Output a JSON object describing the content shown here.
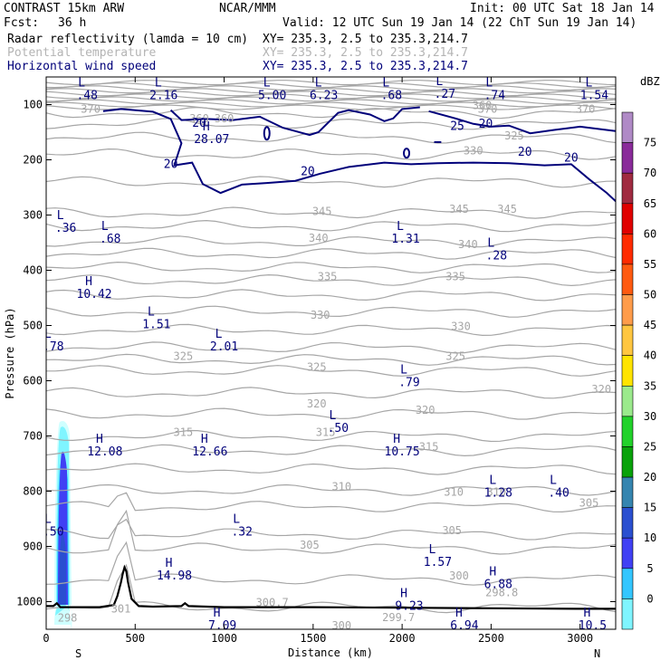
{
  "header": {
    "model": "CONTRAST 15km ARW",
    "org": "NCAR/MMM",
    "init": "Init: 00 UTC Sat 18 Jan 14",
    "fcst_label": "Fcst:",
    "fcst_value": "36 h",
    "valid": "Valid: 12 UTC Sun 19 Jan 14 (22 ChT Sun 19 Jan 14)",
    "fields": [
      {
        "name": "Radar reflectivity (lamda = 10 cm)",
        "xy": "XY= 235.3,  2.5 to 235.3,214.7",
        "color": "#000000"
      },
      {
        "name": "Potential temperature",
        "xy": "XY= 235.3,  2.5 to 235.3,214.7",
        "color": "#b4b4b4"
      },
      {
        "name": "Horizontal wind speed",
        "xy": "XY= 235.3,  2.5 to 235.3,214.7",
        "color": "#00007a"
      }
    ]
  },
  "chart_data": {
    "type": "cross-section",
    "xlabel": "Distance (km)",
    "ylabel": "Pressure (hPa)",
    "xlim": [
      0,
      3200
    ],
    "ylim": [
      1050,
      50
    ],
    "x_ticks": [
      0,
      500,
      1000,
      1500,
      2000,
      2500,
      3000
    ],
    "y_ticks": [
      100,
      200,
      300,
      400,
      500,
      600,
      700,
      800,
      900,
      1000
    ],
    "x_end_labels": {
      "left": "S",
      "right": "N"
    },
    "colorbar": {
      "title": "dBZ",
      "levels": [
        0,
        5,
        10,
        15,
        20,
        25,
        30,
        35,
        40,
        45,
        50,
        55,
        60,
        65,
        70,
        75
      ],
      "colors": [
        "#ffffff",
        "#cfffff",
        "#7ff5ff",
        "#33c6ff",
        "#4040f4",
        "#2a4fd0",
        "#3585b0",
        "#08a20a",
        "#22d22a",
        "#9bea8c",
        "#ffe400",
        "#ffc640",
        "#ff9c4a",
        "#ff5a10",
        "#ff2a00",
        "#e00000",
        "#c80060",
        "#a02a40",
        "#c03c80",
        "#8a2a9a",
        "#b08ac6"
      ]
    },
    "theta_labels": [
      {
        "text": "370",
        "x": 250,
        "p": 115
      },
      {
        "text": "360",
        "x": 860,
        "p": 132
      },
      {
        "text": "360",
        "x": 1000,
        "p": 132
      },
      {
        "text": "370",
        "x": 2480,
        "p": 115
      },
      {
        "text": "360",
        "x": 2450,
        "p": 108
      },
      {
        "text": "370",
        "x": 3030,
        "p": 115
      },
      {
        "text": "330",
        "x": 2400,
        "p": 190
      },
      {
        "text": "325",
        "x": 2630,
        "p": 163
      },
      {
        "text": "345",
        "x": 1550,
        "p": 300
      },
      {
        "text": "345",
        "x": 2320,
        "p": 296
      },
      {
        "text": "345",
        "x": 2590,
        "p": 296
      },
      {
        "text": "340",
        "x": 1530,
        "p": 348
      },
      {
        "text": "340",
        "x": 2370,
        "p": 360
      },
      {
        "text": "335",
        "x": 1580,
        "p": 418
      },
      {
        "text": "335",
        "x": 2300,
        "p": 418
      },
      {
        "text": "330",
        "x": 1540,
        "p": 488
      },
      {
        "text": "330",
        "x": 2330,
        "p": 508
      },
      {
        "text": "325",
        "x": 770,
        "p": 562
      },
      {
        "text": "325",
        "x": 1520,
        "p": 582
      },
      {
        "text": "325",
        "x": 2300,
        "p": 562
      },
      {
        "text": "320",
        "x": 1520,
        "p": 648
      },
      {
        "text": "320",
        "x": 2130,
        "p": 660
      },
      {
        "text": "320",
        "x": 3120,
        "p": 622
      },
      {
        "text": "315",
        "x": 770,
        "p": 700
      },
      {
        "text": "315",
        "x": 1570,
        "p": 700
      },
      {
        "text": "315",
        "x": 2150,
        "p": 726
      },
      {
        "text": "310",
        "x": 1660,
        "p": 798
      },
      {
        "text": "310",
        "x": 2290,
        "p": 808
      },
      {
        "text": "310",
        "x": 2530,
        "p": 808
      },
      {
        "text": "305",
        "x": 3050,
        "p": 828
      },
      {
        "text": "305",
        "x": 1480,
        "p": 904
      },
      {
        "text": "305",
        "x": 2280,
        "p": 878
      },
      {
        "text": "300.7",
        "x": 1270,
        "p": 1008
      },
      {
        "text": "300",
        "x": 2320,
        "p": 960
      },
      {
        "text": "298.8",
        "x": 2560,
        "p": 990
      },
      {
        "text": "299.7",
        "x": 1980,
        "p": 1035
      },
      {
        "text": "300",
        "x": 1660,
        "p": 1050
      },
      {
        "text": "298",
        "x": 120,
        "p": 1036
      },
      {
        "text": "301",
        "x": 420,
        "p": 1020
      }
    ],
    "ws_labels": [
      {
        "text": "20",
        "x": 860,
        "p": 140
      },
      {
        "text": "20",
        "x": 700,
        "p": 215
      },
      {
        "text": "20",
        "x": 1470,
        "p": 228
      },
      {
        "text": "25",
        "x": 2310,
        "p": 146
      },
      {
        "text": "20",
        "x": 2470,
        "p": 142
      },
      {
        "text": "20",
        "x": 2690,
        "p": 193
      },
      {
        "text": "20",
        "x": 2950,
        "p": 203
      }
    ],
    "extrema": [
      {
        "type": "H",
        "value": "28.07",
        "x": 930,
        "p": 170
      },
      {
        "type": "L",
        "value": ".48",
        "x": 230,
        "p": 90
      },
      {
        "type": "L",
        "value": "2.16",
        "x": 660,
        "p": 90
      },
      {
        "type": "L",
        "value": "5.00",
        "x": 1270,
        "p": 90
      },
      {
        "type": "L",
        "value": "6.23",
        "x": 1560,
        "p": 90
      },
      {
        "type": "L",
        "value": ".68",
        "x": 1940,
        "p": 90
      },
      {
        "type": "L",
        "value": ".27",
        "x": 2240,
        "p": 88
      },
      {
        "type": "L",
        "value": ".74",
        "x": 2520,
        "p": 90
      },
      {
        "type": "L",
        "value": "1.54",
        "x": 3080,
        "p": 90
      },
      {
        "type": "L",
        "value": ".36",
        "x": 110,
        "p": 330
      },
      {
        "type": "L",
        "value": ".68",
        "x": 360,
        "p": 350
      },
      {
        "type": "L",
        "value": "1.31",
        "x": 2020,
        "p": 350
      },
      {
        "type": "L",
        "value": ".28",
        "x": 2530,
        "p": 380
      },
      {
        "type": "H",
        "value": "10.42",
        "x": 270,
        "p": 450
      },
      {
        "type": "L",
        "value": "1.51",
        "x": 620,
        "p": 505
      },
      {
        "type": "L",
        "value": "2.01",
        "x": 1000,
        "p": 545
      },
      {
        "type": "L",
        "value": ".78",
        "x": 40,
        "p": 545
      },
      {
        "type": "L",
        "value": ".79",
        "x": 2040,
        "p": 610
      },
      {
        "type": "L",
        "value": ".50",
        "x": 1640,
        "p": 693
      },
      {
        "type": "H",
        "value": "12.08",
        "x": 330,
        "p": 735
      },
      {
        "type": "H",
        "value": "12.66",
        "x": 920,
        "p": 735
      },
      {
        "type": "H",
        "value": "10.75",
        "x": 2000,
        "p": 735
      },
      {
        "type": "L",
        "value": "1.28",
        "x": 2540,
        "p": 810
      },
      {
        "type": "L",
        "value": ".40",
        "x": 2880,
        "p": 810
      },
      {
        "type": "L",
        "value": ".32",
        "x": 1100,
        "p": 880
      },
      {
        "type": "L",
        "value": ".50",
        "x": 40,
        "p": 880
      },
      {
        "type": "L",
        "value": "1.57",
        "x": 2200,
        "p": 935
      },
      {
        "type": "H",
        "value": "14.98",
        "x": 720,
        "p": 960
      },
      {
        "type": "H",
        "value": "6.88",
        "x": 2540,
        "p": 975
      },
      {
        "type": "H",
        "value": "9.23",
        "x": 2040,
        "p": 1015
      },
      {
        "type": "H",
        "value": "7.09",
        "x": 990,
        "p": 1050
      },
      {
        "type": "H",
        "value": "6.94",
        "x": 2350,
        "p": 1050
      },
      {
        "type": "H",
        "value": "10.5",
        "x": 3070,
        "p": 1050
      }
    ],
    "terrain": {
      "x": [
        0,
        40,
        60,
        80,
        100,
        120,
        150,
        300,
        380,
        400,
        420,
        430,
        440,
        450,
        460,
        480,
        520,
        600,
        760,
        780,
        800,
        1000,
        1500,
        2000,
        2500,
        3000,
        3200
      ],
      "p": [
        1008,
        1008,
        1003,
        1010,
        1010,
        1010,
        1010,
        1010,
        1006,
        990,
        965,
        950,
        938,
        945,
        965,
        995,
        1008,
        1009,
        1008,
        1003,
        1008,
        1010,
        1010,
        1011,
        1012,
        1013,
        1013
      ]
    }
  }
}
